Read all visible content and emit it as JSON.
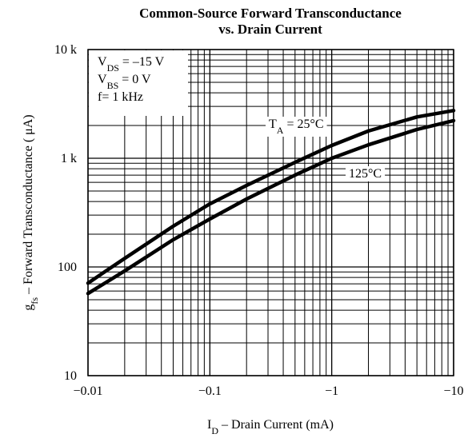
{
  "chart_data": {
    "type": "line",
    "title": [
      "Common-Source Forward Transconductance",
      "vs. Drain Current"
    ],
    "xlabel": [
      "I",
      "D",
      " – Drain Current (mA)"
    ],
    "ylabel": [
      "g",
      "fs",
      " – Forward Transconductance ( μA)"
    ],
    "xscale": "log",
    "yscale": "log",
    "grid": true,
    "xlim": [
      -0.01,
      -10
    ],
    "xticks": [
      {
        "value": -0.01,
        "label": "−0.01"
      },
      {
        "value": -0.1,
        "label": "−0.1"
      },
      {
        "value": -1,
        "label": "−1"
      },
      {
        "value": -10,
        "label": "−10"
      }
    ],
    "ylim": [
      10,
      10000
    ],
    "yticks": [
      10,
      100,
      {
        "value": 1000,
        "label": "1 k"
      },
      {
        "value": 10000,
        "label": "10 k"
      }
    ],
    "conditions": [
      [
        "V",
        "DS",
        " = –15 V"
      ],
      [
        "V",
        "BS",
        " = 0 V"
      ],
      [
        "f= 1 kHz"
      ]
    ],
    "x": [
      -0.01,
      -0.02,
      -0.05,
      -0.1,
      -0.2,
      -0.5,
      -1,
      -2,
      -5,
      -10
    ],
    "series": [
      {
        "name": [
          "T",
          "A",
          " = 25°C"
        ],
        "color": "#000000",
        "values": [
          71,
          120,
          237,
          380,
          562,
          918,
          1312,
          1780,
          2400,
          2750
        ]
      },
      {
        "name": [
          "125°C"
        ],
        "color": "#000000",
        "values": [
          57,
          92,
          178,
          276,
          422,
          700,
          1000,
          1330,
          1840,
          2220
        ]
      }
    ]
  }
}
